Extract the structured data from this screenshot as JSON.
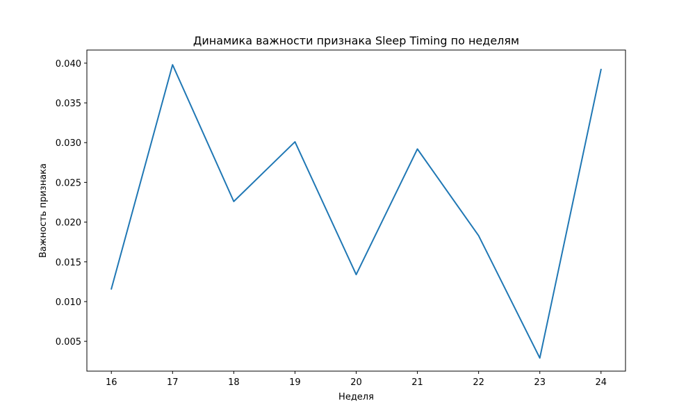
{
  "chart_data": {
    "type": "line",
    "title": "Динамика важности признака Sleep Timing по неделям",
    "xlabel": "Неделя",
    "ylabel": "Важность признака",
    "x": [
      16,
      17,
      18,
      19,
      20,
      21,
      22,
      23,
      24
    ],
    "series": [
      {
        "values": [
          0.0116,
          0.0398,
          0.0226,
          0.0301,
          0.0134,
          0.0292,
          0.0183,
          0.0029,
          0.0392
        ],
        "color": "#1f77b4"
      }
    ],
    "xlim": [
      15.6,
      24.4
    ],
    "ylim": [
      0.00125,
      0.04165
    ],
    "xticks": [
      16,
      17,
      18,
      19,
      20,
      21,
      22,
      23,
      24
    ],
    "xtick_labels": [
      "16",
      "17",
      "18",
      "19",
      "20",
      "21",
      "22",
      "23",
      "24"
    ],
    "yticks": [
      0.005,
      0.01,
      0.015,
      0.02,
      0.025,
      0.03,
      0.035,
      0.04
    ],
    "ytick_labels": [
      "0.005",
      "0.010",
      "0.015",
      "0.020",
      "0.025",
      "0.030",
      "0.035",
      "0.040"
    ],
    "grid": false,
    "legend": false
  }
}
